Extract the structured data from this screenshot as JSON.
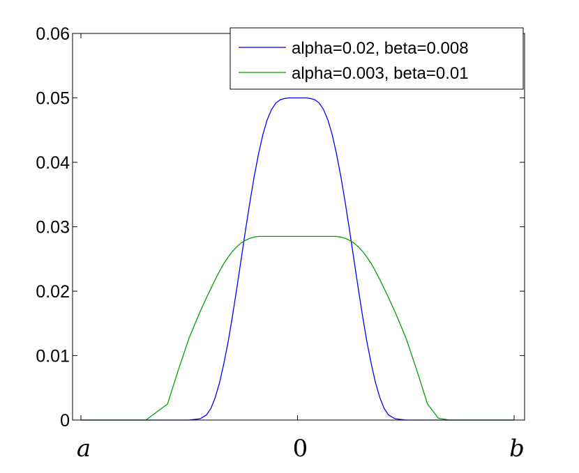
{
  "chart_data": {
    "type": "line",
    "title": "",
    "xlabel": "",
    "ylabel": "",
    "xlim": [
      -1,
      1
    ],
    "ylim": [
      0,
      0.06
    ],
    "grid": false,
    "legend_position": "top-right",
    "x_ticks": [
      {
        "value": -1,
        "label": "a",
        "italic": true
      },
      {
        "value": 0,
        "label": "0",
        "italic": false
      },
      {
        "value": 1,
        "label": "b",
        "italic": true
      }
    ],
    "y_ticks": [
      {
        "value": 0,
        "label": "0"
      },
      {
        "value": 0.01,
        "label": "0.01"
      },
      {
        "value": 0.02,
        "label": "0.02"
      },
      {
        "value": 0.03,
        "label": "0.03"
      },
      {
        "value": 0.04,
        "label": "0.04"
      },
      {
        "value": 0.05,
        "label": "0.05"
      },
      {
        "value": 0.06,
        "label": "0.06"
      }
    ],
    "x": [
      -1.0,
      -0.9,
      -0.8,
      -0.7,
      -0.6,
      -0.55,
      -0.5,
      -0.45,
      -0.42,
      -0.4,
      -0.38,
      -0.36,
      -0.34,
      -0.32,
      -0.3,
      -0.28,
      -0.26,
      -0.24,
      -0.22,
      -0.2,
      -0.18,
      -0.16,
      -0.14,
      -0.12,
      -0.1,
      -0.08,
      -0.06,
      -0.04,
      -0.02,
      0.0,
      0.02,
      0.04,
      0.06,
      0.08,
      0.1,
      0.12,
      0.14,
      0.16,
      0.18,
      0.2,
      0.22,
      0.24,
      0.26,
      0.28,
      0.3,
      0.32,
      0.34,
      0.36,
      0.38,
      0.4,
      0.42,
      0.45,
      0.5,
      0.55,
      0.6,
      0.65,
      0.7,
      0.8,
      0.9,
      1.0
    ],
    "series": [
      {
        "name": "alpha=0.02, beta=0.008",
        "color": "#0000ff",
        "values": [
          0,
          0,
          0,
          0,
          0,
          0,
          0,
          0.0002,
          0.0008,
          0.0018,
          0.0035,
          0.0058,
          0.0088,
          0.0122,
          0.0162,
          0.0205,
          0.025,
          0.0295,
          0.0338,
          0.0378,
          0.0413,
          0.0443,
          0.0466,
          0.0482,
          0.0492,
          0.0497,
          0.0499,
          0.05,
          0.05,
          0.05,
          0.05,
          0.05,
          0.0499,
          0.0497,
          0.0492,
          0.0482,
          0.0466,
          0.0443,
          0.0413,
          0.0378,
          0.0338,
          0.0295,
          0.025,
          0.0205,
          0.0162,
          0.0122,
          0.0088,
          0.0058,
          0.0035,
          0.0018,
          0.0008,
          0.0002,
          0,
          0,
          0,
          0,
          0,
          0,
          0,
          0
        ]
      },
      {
        "name": "alpha=0.003, beta=0.01",
        "color": "#00a000",
        "values": [
          0,
          0,
          0,
          0,
          0.0025,
          0.0078,
          0.0128,
          0.0168,
          0.019,
          0.0204,
          0.0218,
          0.0231,
          0.0243,
          0.0253,
          0.0262,
          0.0269,
          0.0275,
          0.0279,
          0.0282,
          0.0284,
          0.0285,
          0.0285,
          0.0285,
          0.0285,
          0.0285,
          0.0285,
          0.0285,
          0.0285,
          0.0285,
          0.0285,
          0.0285,
          0.0285,
          0.0285,
          0.0285,
          0.0285,
          0.0285,
          0.0285,
          0.0285,
          0.0285,
          0.0284,
          0.0282,
          0.0279,
          0.0275,
          0.0269,
          0.0262,
          0.0253,
          0.0243,
          0.0231,
          0.0218,
          0.0204,
          0.019,
          0.0168,
          0.0128,
          0.0078,
          0.0025,
          0.0003,
          0,
          0,
          0,
          0
        ]
      }
    ]
  }
}
